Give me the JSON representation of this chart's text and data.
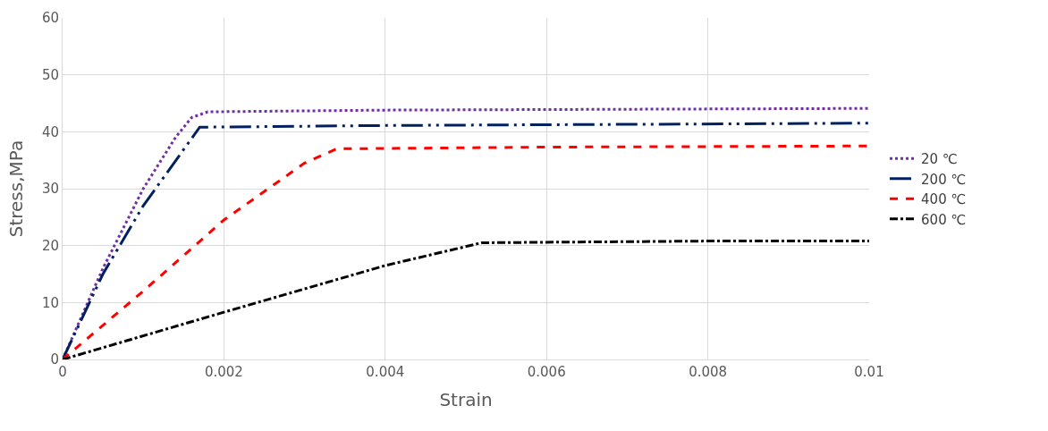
{
  "chart_data": {
    "type": "line",
    "xlabel": "Strain",
    "ylabel": "Stress,MPa",
    "xlim": [
      0,
      0.01
    ],
    "xticks": [
      0,
      0.002,
      0.004,
      0.006,
      0.008,
      0.01
    ],
    "ylim": [
      0,
      60
    ],
    "yticks": [
      0,
      10,
      20,
      30,
      40,
      50,
      60
    ],
    "grid": true,
    "legend": "right",
    "marker": "none",
    "series": [
      {
        "name": "20 ℃",
        "color": "#7030a0",
        "line_style": "dotted",
        "x": [
          0,
          0.0005,
          0.001,
          0.0014,
          0.0016,
          0.0018,
          0.004,
          0.01
        ],
        "values": [
          0,
          16,
          30,
          39,
          42.5,
          43.5,
          43.8,
          44.1
        ]
      },
      {
        "name": "200 ℃",
        "color": "#002060",
        "line_style": "longdashdotdot",
        "x": [
          0,
          0.0005,
          0.001,
          0.0017,
          0.004,
          0.01
        ],
        "values": [
          0,
          15,
          27,
          40.8,
          41.1,
          41.5
        ]
      },
      {
        "name": "400 ℃",
        "color": "#ff0000",
        "line_style": "dashed",
        "x": [
          0,
          0.001,
          0.002,
          0.003,
          0.0034,
          0.006,
          0.01
        ],
        "values": [
          0,
          12,
          24.5,
          34.5,
          37,
          37.3,
          37.5
        ]
      },
      {
        "name": "600 ℃",
        "color": "#000000",
        "line_style": "dashdot",
        "x": [
          0,
          0.002,
          0.004,
          0.0052,
          0.008,
          0.01
        ],
        "values": [
          0,
          8.3,
          16.5,
          20.5,
          20.8,
          20.8
        ]
      }
    ]
  }
}
